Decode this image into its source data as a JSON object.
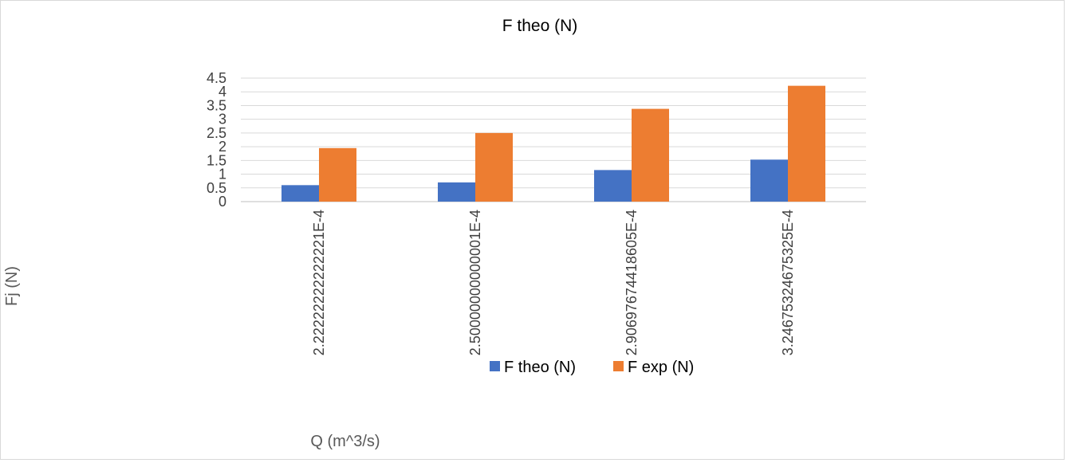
{
  "chart_data": {
    "type": "bar",
    "title": "F theo (N)",
    "xlabel": "Q (m^3/s)",
    "ylabel": "Fj (N)",
    "categories": [
      "2.22222222222221E-4",
      "2.50000000000001E-4",
      "2.90697674418605E-4",
      "3.24675324675325E-4"
    ],
    "series": [
      {
        "name": "F theo (N)",
        "color": "#4472c4",
        "values": [
          0.6,
          0.7,
          1.15,
          1.53
        ]
      },
      {
        "name": "F exp (N)",
        "color": "#ed7d31",
        "values": [
          1.95,
          2.5,
          3.38,
          4.22
        ]
      }
    ],
    "yticks": [
      "0",
      "0.5",
      "1",
      "1.5",
      "2",
      "2.5",
      "3",
      "3.5",
      "4",
      "4.5"
    ],
    "ylim": [
      0,
      4.5
    ],
    "grid": true,
    "legend_position": "bottom-center"
  }
}
